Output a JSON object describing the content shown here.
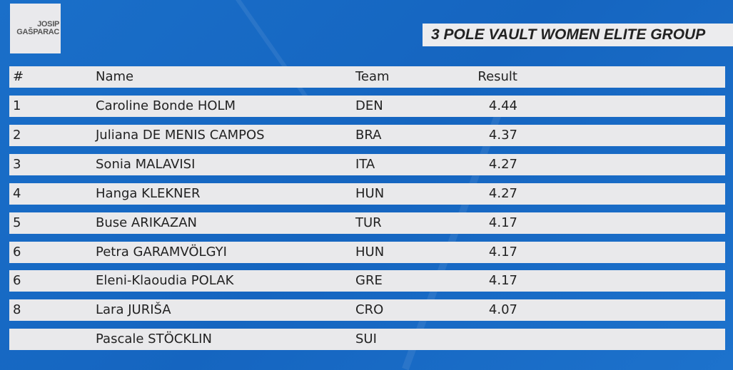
{
  "logo": {
    "line1": "JOSIP",
    "line2": "GAŠPARAC"
  },
  "title": "3 POLE VAULT WOMEN ELITE GROUP",
  "table": {
    "headers": {
      "rank": "#",
      "name": "Name",
      "team": "Team",
      "result": "Result"
    },
    "rows": [
      {
        "rank": "1",
        "name": "Caroline Bonde HOLM",
        "team": "DEN",
        "result": "4.44"
      },
      {
        "rank": "2",
        "name": "Juliana DE MENIS CAMPOS",
        "team": "BRA",
        "result": "4.37"
      },
      {
        "rank": "3",
        "name": "Sonia MALAVISI",
        "team": "ITA",
        "result": "4.27"
      },
      {
        "rank": "4",
        "name": "Hanga KLEKNER",
        "team": "HUN",
        "result": "4.27"
      },
      {
        "rank": "5",
        "name": "Buse ARIKAZAN",
        "team": "TUR",
        "result": "4.17"
      },
      {
        "rank": "6",
        "name": "Petra GARAMVÖLGYI",
        "team": "HUN",
        "result": "4.17"
      },
      {
        "rank": "6",
        "name": "Eleni-Klaoudia POLAK",
        "team": "GRE",
        "result": "4.17"
      },
      {
        "rank": "8",
        "name": "Lara JURIŠA",
        "team": "CRO",
        "result": "4.07"
      },
      {
        "rank": "",
        "name": "Pascale STÖCKLIN",
        "team": "SUI",
        "result": ""
      }
    ]
  }
}
